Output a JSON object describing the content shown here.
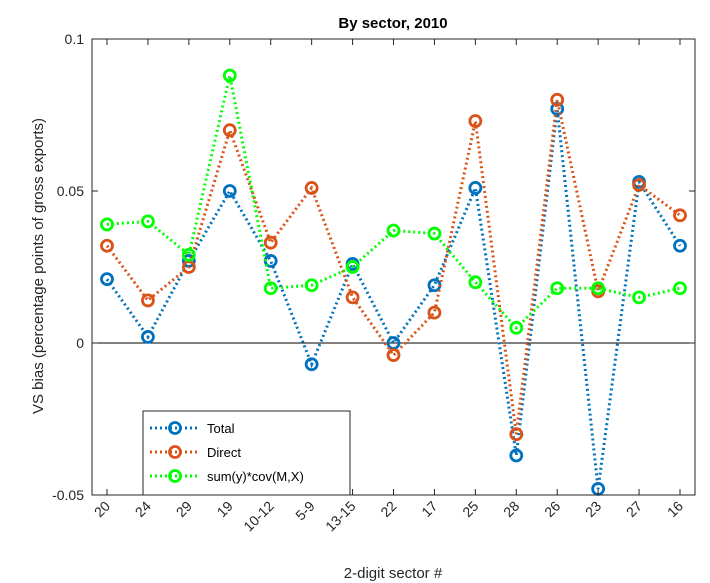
{
  "chart_data": {
    "type": "line",
    "title": "By sector, 2010",
    "xlabel": "2-digit sector #",
    "ylabel": "VS bias (percentage points of gross exports)",
    "categories": [
      "20",
      "24",
      "29",
      "19",
      "10-12",
      "5-9",
      "13-15",
      "22",
      "17",
      "25",
      "28",
      "26",
      "23",
      "27",
      "16"
    ],
    "ylim": [
      -0.05,
      0.1
    ],
    "yticks": [
      -0.05,
      0,
      0.05,
      0.1
    ],
    "ytick_labels": [
      "-0.05",
      "0",
      "0.05",
      "0.1"
    ],
    "grid": false,
    "zero_line": true,
    "legend_position": "bottom-left",
    "series": [
      {
        "name": "Total",
        "color": "#0072BD",
        "values": [
          0.021,
          0.002,
          0.027,
          0.05,
          0.027,
          -0.007,
          0.026,
          0.0,
          0.019,
          0.051,
          -0.037,
          0.077,
          -0.048,
          0.053,
          0.032
        ]
      },
      {
        "name": "Direct",
        "color": "#D95319",
        "values": [
          0.032,
          0.014,
          0.025,
          0.07,
          0.033,
          0.051,
          0.015,
          -0.004,
          0.01,
          0.073,
          -0.03,
          0.08,
          0.017,
          0.052,
          0.042
        ]
      },
      {
        "name": "sum(y)*cov(M,X)",
        "color": "#00FF00",
        "values": [
          0.039,
          0.04,
          0.029,
          0.088,
          0.018,
          0.019,
          0.025,
          0.037,
          0.036,
          0.02,
          0.005,
          0.018,
          0.018,
          0.015,
          0.018
        ]
      }
    ]
  }
}
